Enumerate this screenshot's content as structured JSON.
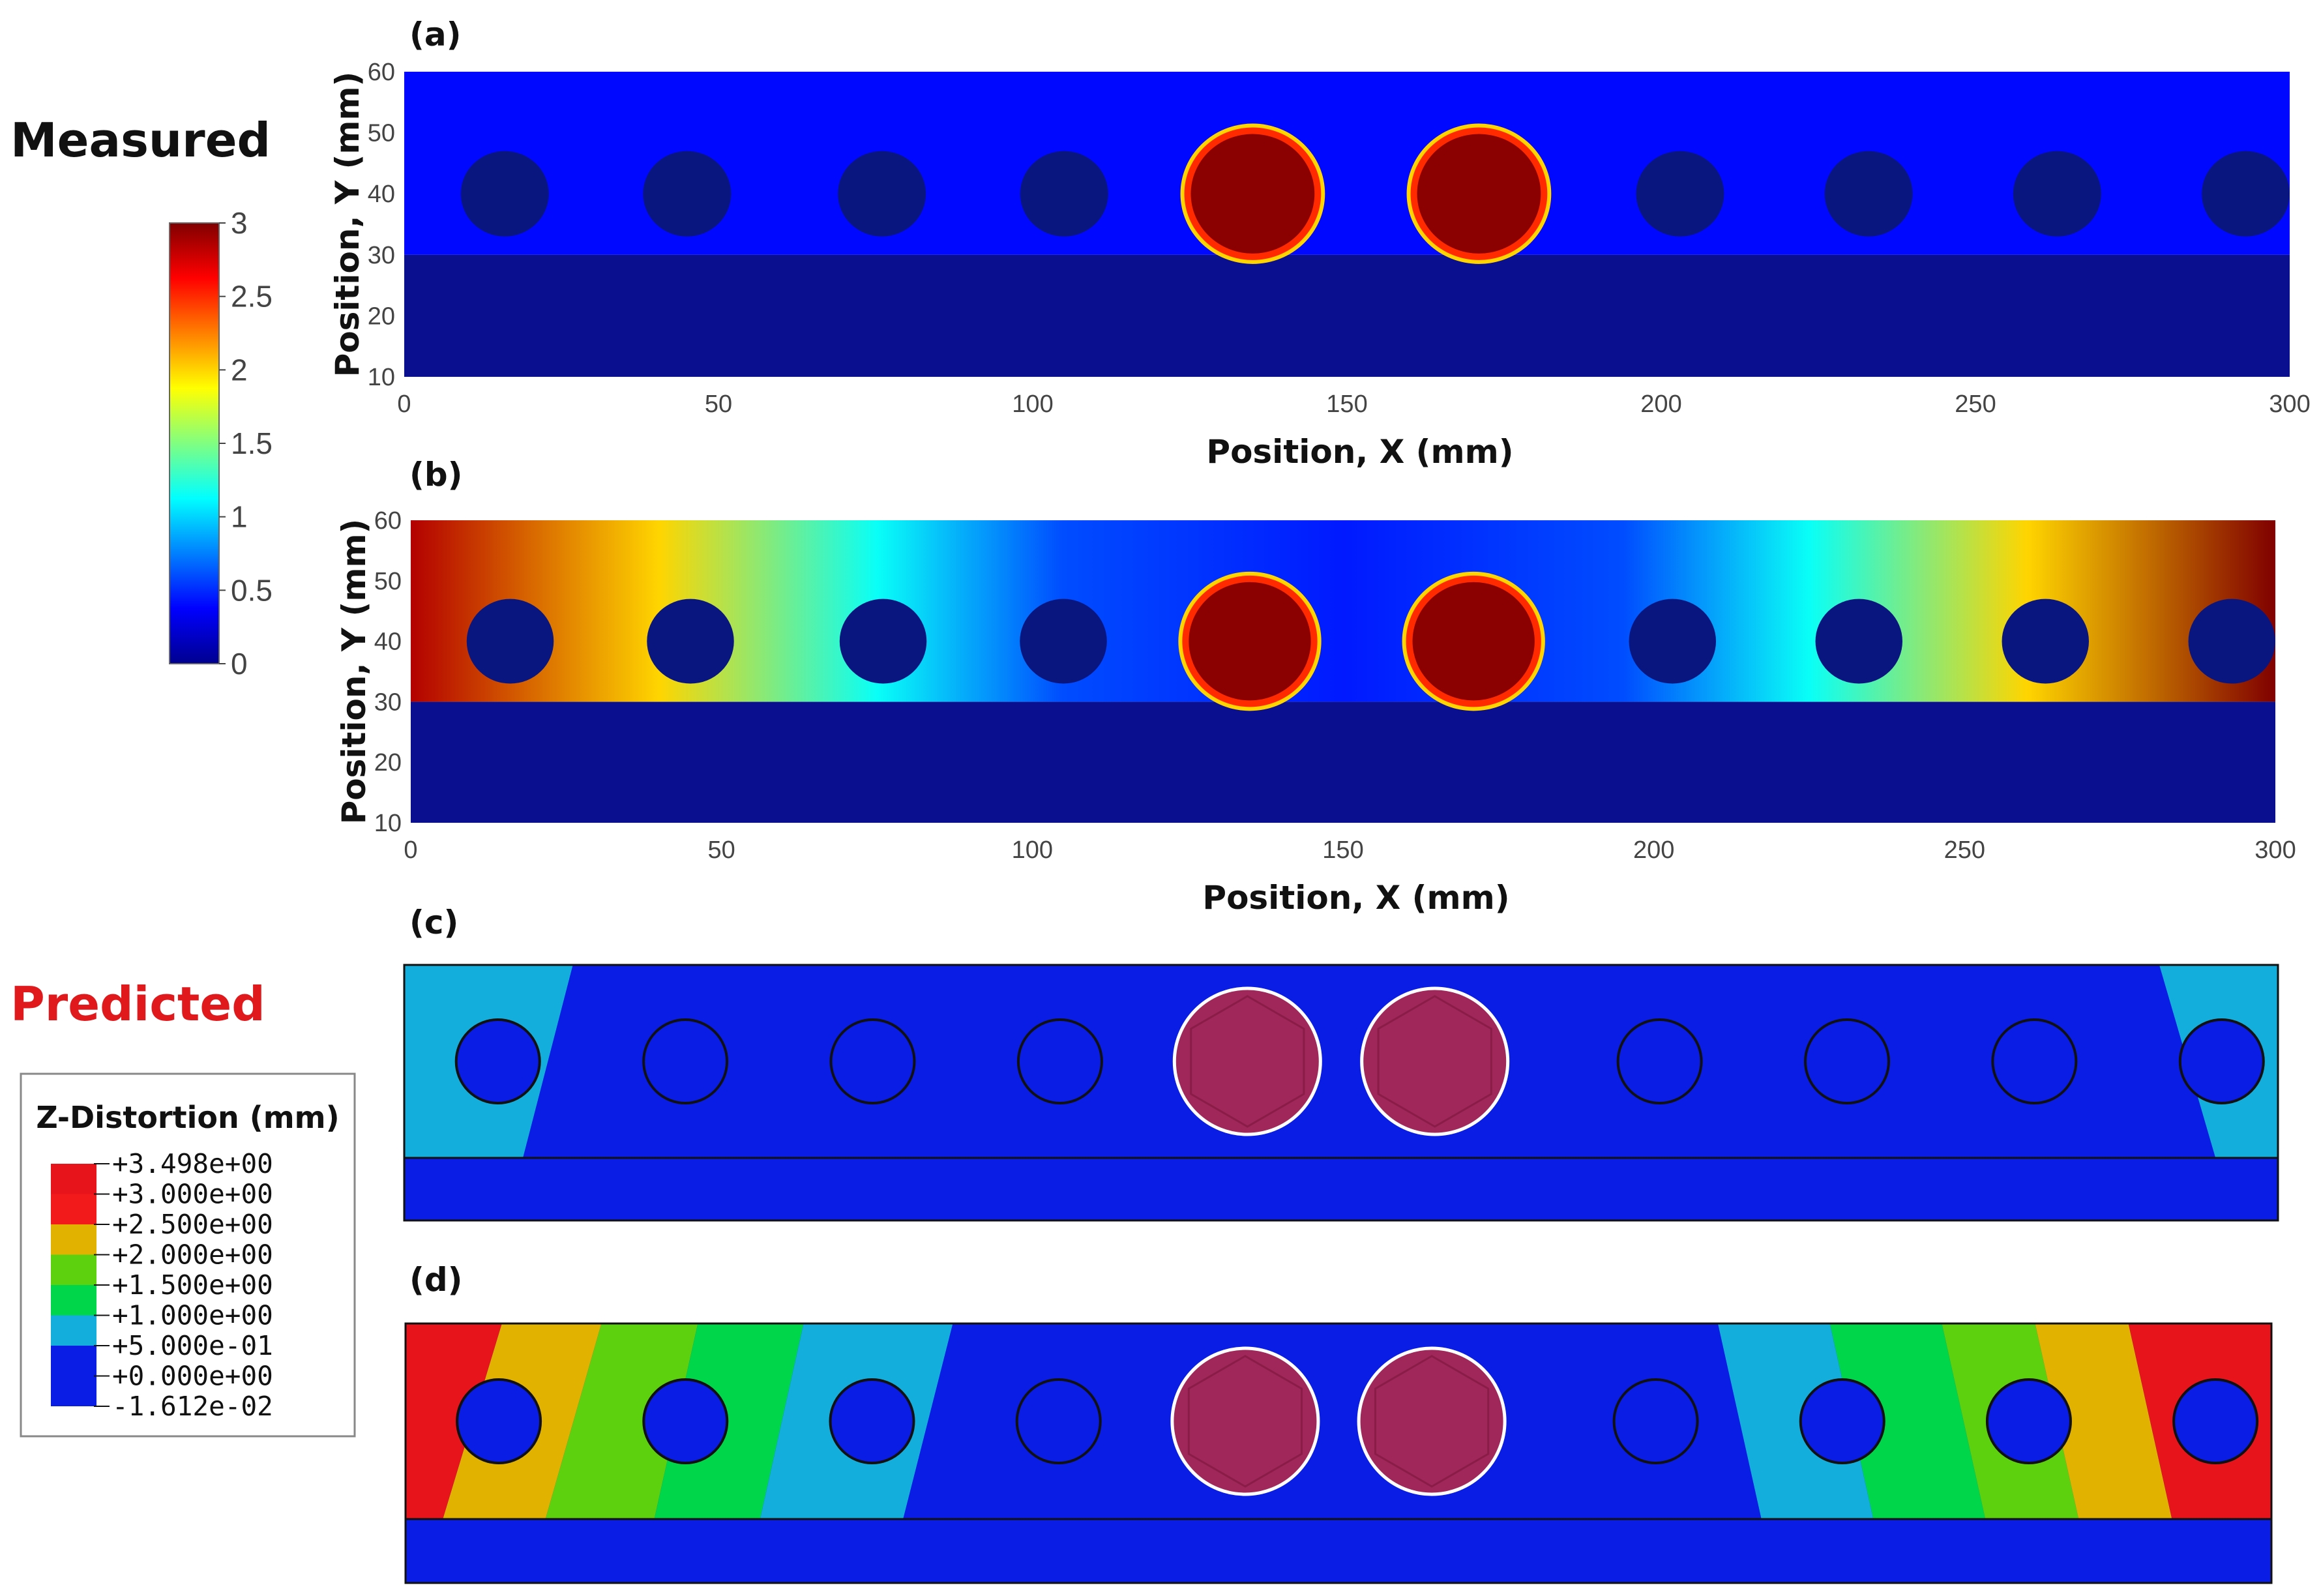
{
  "left": {
    "measured_label": "Measured",
    "predicted_label": "Predicted",
    "colorbar": {
      "ticks": [
        "3",
        "2.5",
        "2",
        "1.5",
        "1",
        "0.5",
        "0"
      ],
      "range": [
        0,
        3
      ]
    },
    "legend": {
      "title": "Z-Distortion (mm)",
      "values": [
        "+3.498e+00",
        "+3.000e+00",
        "+2.500e+00",
        "+2.000e+00",
        "+1.500e+00",
        "+1.000e+00",
        "+5.000e-01",
        "+0.000e+00",
        "-1.612e-02"
      ],
      "band_colors": [
        "#e8141c",
        "#f21a1a",
        "#e1b300",
        "#5ed10f",
        "#00d64a",
        "#14aedc",
        "#0a1de4",
        "#0a1de4"
      ]
    }
  },
  "panels": {
    "a": {
      "label": "(a)"
    },
    "b": {
      "label": "(b)"
    },
    "c": {
      "label": "(c)"
    },
    "d": {
      "label": "(d)"
    }
  },
  "chart_data": [
    {
      "type": "heatmap",
      "panel": "a",
      "xlabel": "Position, X (mm)",
      "ylabel": "Position, Y (mm)",
      "xlim": [
        0,
        300
      ],
      "ylim": [
        10,
        60
      ],
      "xticks": [
        "0",
        "50",
        "100",
        "150",
        "200",
        "250",
        "300"
      ],
      "yticks": [
        "60",
        "50",
        "40",
        "30",
        "20",
        "10"
      ],
      "plate_y": [
        30,
        60
      ],
      "base_y": [
        10,
        30
      ],
      "hole_centers_x": [
        16,
        45,
        76,
        105,
        135,
        171,
        203,
        233,
        263,
        293
      ],
      "hole_center_y": 40,
      "hole_radius": 7,
      "hot_holes_x": [
        135,
        171
      ],
      "hot_radius": 11.5,
      "colormap": "jet",
      "plate_value": 0.4,
      "hot_value": 3
    },
    {
      "type": "heatmap",
      "panel": "b",
      "xlabel": "Position, X (mm)",
      "ylabel": "Position, Y (mm)",
      "xlim": [
        0,
        300
      ],
      "ylim": [
        10,
        60
      ],
      "xticks": [
        "0",
        "50",
        "100",
        "150",
        "200",
        "250",
        "300"
      ],
      "yticks": [
        "60",
        "50",
        "40",
        "30",
        "20",
        "10"
      ],
      "plate_y": [
        30,
        60
      ],
      "base_y": [
        10,
        30
      ],
      "hole_centers_x": [
        16,
        45,
        76,
        105,
        135,
        171,
        203,
        233,
        263,
        293
      ],
      "hole_center_y": 40,
      "hole_radius": 7,
      "hot_holes_x": [
        135,
        171
      ],
      "hot_radius": 11.5,
      "colormap": "jet",
      "gradient_profile": [
        {
          "x": 0,
          "value": 2.85
        },
        {
          "x": 40,
          "value": 2.0
        },
        {
          "x": 75,
          "value": 1.15
        },
        {
          "x": 105,
          "value": 0.6
        },
        {
          "x": 150,
          "value": 0.45
        },
        {
          "x": 195,
          "value": 0.6
        },
        {
          "x": 225,
          "value": 1.15
        },
        {
          "x": 260,
          "value": 2.0
        },
        {
          "x": 300,
          "value": 3.0
        }
      ]
    },
    {
      "type": "contour",
      "panel": "c",
      "plate_y": [
        30,
        60
      ],
      "base_y": [
        18,
        30
      ],
      "xlim": [
        0,
        300
      ],
      "hole_centers_x": [
        15,
        45,
        75,
        105,
        135,
        165,
        201,
        231,
        261,
        291
      ],
      "hot_holes_x": [
        135,
        165
      ],
      "bands": [
        {
          "value": 0.5,
          "color": "#14aedc",
          "side": "left",
          "top_x": 27,
          "bottom_x": 19
        },
        {
          "value": 0.5,
          "color": "#14aedc",
          "side": "right",
          "top_x": 281,
          "bottom_x": 290
        }
      ],
      "base_color": "#0a1de4"
    },
    {
      "type": "contour",
      "panel": "d",
      "plate_y": [
        30,
        60
      ],
      "base_y": [
        18,
        30
      ],
      "xlim": [
        0,
        300
      ],
      "hole_centers_x": [
        15,
        45,
        75,
        105,
        135,
        165,
        201,
        231,
        261,
        291
      ],
      "hot_holes_x": [
        135,
        165
      ],
      "band_colors": [
        "#e8141c",
        "#e1b300",
        "#5ed10f",
        "#00d64a",
        "#14aedc",
        "#0a1de4",
        "#14aedc",
        "#00d64a",
        "#5ed10f",
        "#e1b300",
        "#e8141c"
      ],
      "band_edges_top": [
        0,
        15.5,
        31.5,
        47,
        64,
        88,
        211,
        229,
        247,
        262,
        277,
        300
      ],
      "band_edges_bottom": [
        0,
        6,
        22.5,
        40,
        57,
        80,
        218,
        236,
        254,
        269,
        284,
        300
      ],
      "base_color": "#0a1de4"
    }
  ]
}
